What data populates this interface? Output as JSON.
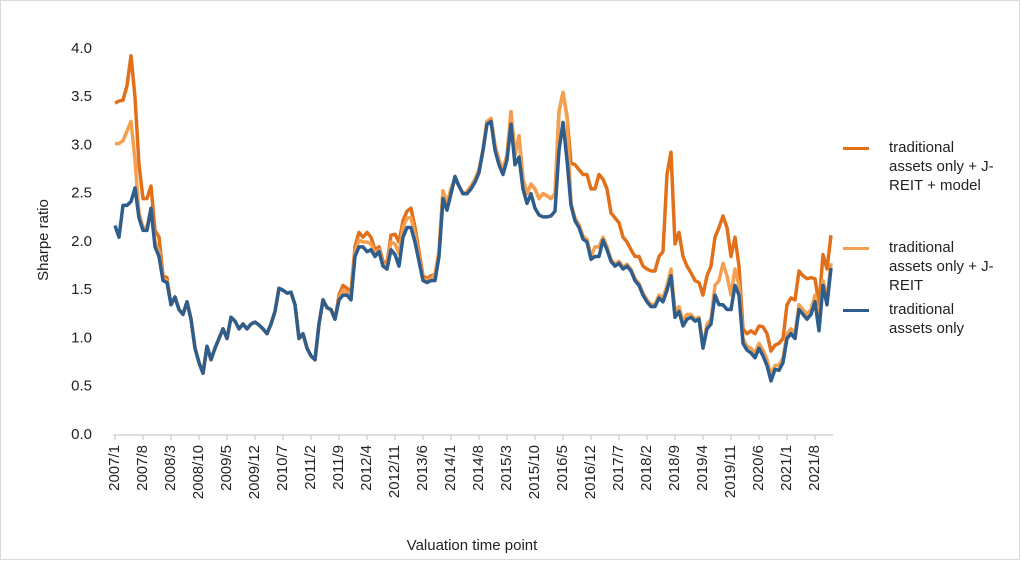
{
  "chart_data": {
    "type": "line",
    "x_label": "Valuation time point",
    "y_label": "Sharpe ratio",
    "ylim": [
      0,
      4
    ],
    "yticks": [
      {
        "value": 0,
        "label": "0.0"
      },
      {
        "value": 0.5,
        "label": "0.5"
      },
      {
        "value": 1,
        "label": "1.0"
      },
      {
        "value": 1.5,
        "label": "1.5"
      },
      {
        "value": 2,
        "label": "2.0"
      },
      {
        "value": 2.5,
        "label": "2.5"
      },
      {
        "value": 3,
        "label": "3.0"
      },
      {
        "value": 3.5,
        "label": "3.5"
      },
      {
        "value": 4,
        "label": "4.0"
      }
    ],
    "grid": false,
    "legend": "right",
    "categories": [
      "2007/1",
      null,
      null,
      null,
      null,
      null,
      null,
      "2007/8",
      null,
      null,
      null,
      null,
      null,
      null,
      "2008/3",
      null,
      null,
      null,
      null,
      null,
      null,
      "2008/10",
      null,
      null,
      null,
      null,
      null,
      null,
      "2009/5",
      null,
      null,
      null,
      null,
      null,
      null,
      "2009/12",
      null,
      null,
      null,
      null,
      null,
      null,
      "2010/7",
      null,
      null,
      null,
      null,
      null,
      null,
      "2011/2",
      null,
      null,
      null,
      null,
      null,
      null,
      "2011/9",
      null,
      null,
      null,
      null,
      null,
      null,
      "2012/4",
      null,
      null,
      null,
      null,
      null,
      null,
      "2012/11",
      null,
      null,
      null,
      null,
      null,
      null,
      "2013/6",
      null,
      null,
      null,
      null,
      null,
      null,
      "2014/1",
      null,
      null,
      null,
      null,
      null,
      null,
      "2014/8",
      null,
      null,
      null,
      null,
      null,
      null,
      "2015/3",
      null,
      null,
      null,
      null,
      null,
      null,
      "2015/10",
      null,
      null,
      null,
      null,
      null,
      null,
      "2016/5",
      null,
      null,
      null,
      null,
      null,
      null,
      "2016/12",
      null,
      null,
      null,
      null,
      null,
      null,
      "2017/7",
      null,
      null,
      null,
      null,
      null,
      null,
      "2018/2",
      null,
      null,
      null,
      null,
      null,
      null,
      "2018/9",
      null,
      null,
      null,
      null,
      null,
      null,
      "2019/4",
      null,
      null,
      null,
      null,
      null,
      null,
      "2019/11",
      null,
      null,
      null,
      null,
      null,
      null,
      "2020/6",
      null,
      null,
      null,
      null,
      null,
      null,
      "2021/1",
      null,
      null,
      null,
      null,
      null,
      null,
      "2021/8",
      null,
      null,
      null,
      null
    ],
    "series": [
      {
        "name": "traditional assets only + J-REIT + model",
        "color": "#e2701a",
        "values": [
          3.44,
          3.46,
          3.47,
          3.62,
          3.93,
          3.5,
          2.8,
          2.45,
          2.45,
          2.58,
          2.12,
          2.05,
          1.65,
          1.63,
          1.35,
          1.43,
          1.3,
          1.25,
          1.38,
          1.2,
          0.9,
          0.75,
          0.64,
          0.92,
          0.78,
          0.9,
          1.0,
          1.1,
          1.0,
          1.22,
          1.18,
          1.1,
          1.15,
          1.1,
          1.15,
          1.17,
          1.14,
          1.1,
          1.05,
          1.15,
          1.28,
          1.52,
          1.5,
          1.47,
          1.48,
          1.35,
          1.0,
          1.05,
          0.9,
          0.82,
          0.78,
          1.15,
          1.4,
          1.32,
          1.3,
          1.2,
          1.45,
          1.55,
          1.52,
          1.48,
          1.95,
          2.1,
          2.05,
          2.1,
          2.05,
          1.92,
          1.95,
          1.8,
          1.78,
          2.07,
          2.08,
          2.0,
          2.22,
          2.32,
          2.35,
          2.15,
          1.9,
          1.65,
          1.62,
          1.65,
          1.66,
          1.9,
          2.53,
          2.4,
          2.55,
          2.65,
          2.58,
          2.5,
          2.52,
          2.58,
          2.65,
          2.75,
          2.95,
          3.25,
          3.28,
          3.0,
          2.85,
          2.75,
          2.9,
          3.35,
          2.9,
          3.1,
          2.65,
          2.5,
          2.6,
          2.55,
          2.45,
          2.5,
          2.48,
          2.45,
          2.5,
          3.35,
          3.55,
          3.3,
          2.82,
          2.8,
          2.75,
          2.7,
          2.7,
          2.55,
          2.55,
          2.7,
          2.65,
          2.55,
          2.3,
          2.25,
          2.2,
          2.05,
          2.0,
          1.92,
          1.85,
          1.85,
          1.75,
          1.72,
          1.7,
          1.7,
          1.85,
          1.9,
          2.7,
          2.93,
          1.98,
          2.1,
          1.85,
          1.75,
          1.68,
          1.6,
          1.58,
          1.45,
          1.65,
          1.75,
          2.05,
          2.15,
          2.27,
          2.15,
          1.85,
          2.05,
          1.75,
          1.1,
          1.05,
          1.08,
          1.05,
          1.13,
          1.12,
          1.05,
          0.87,
          0.93,
          0.95,
          1.0,
          1.35,
          1.42,
          1.4,
          1.7,
          1.65,
          1.62,
          1.63,
          1.62,
          1.35,
          1.87,
          1.72,
          2.07
        ]
      },
      {
        "name": "traditional assets only + J-REIT",
        "color": "#f5a04e",
        "values": [
          3.02,
          3.02,
          3.05,
          3.15,
          3.25,
          2.85,
          2.3,
          2.15,
          2.15,
          2.35,
          2.0,
          1.9,
          1.62,
          1.6,
          1.35,
          1.43,
          1.3,
          1.25,
          1.38,
          1.2,
          0.9,
          0.75,
          0.64,
          0.92,
          0.78,
          0.9,
          1.0,
          1.1,
          1.0,
          1.22,
          1.18,
          1.1,
          1.15,
          1.1,
          1.15,
          1.17,
          1.14,
          1.1,
          1.05,
          1.15,
          1.28,
          1.52,
          1.5,
          1.47,
          1.48,
          1.35,
          1.0,
          1.05,
          0.9,
          0.82,
          0.78,
          1.15,
          1.4,
          1.32,
          1.3,
          1.2,
          1.42,
          1.5,
          1.48,
          1.44,
          1.9,
          2.02,
          2.0,
          2.0,
          1.98,
          1.88,
          1.92,
          1.78,
          1.75,
          2.0,
          1.98,
          1.88,
          2.15,
          2.25,
          2.25,
          2.08,
          1.85,
          1.62,
          1.6,
          1.62,
          1.66,
          1.9,
          2.53,
          2.4,
          2.55,
          2.65,
          2.58,
          2.5,
          2.52,
          2.58,
          2.65,
          2.75,
          2.95,
          3.25,
          3.28,
          3.0,
          2.85,
          2.75,
          2.9,
          3.35,
          2.9,
          3.1,
          2.65,
          2.5,
          2.6,
          2.55,
          2.45,
          2.5,
          2.48,
          2.45,
          2.5,
          3.35,
          3.55,
          3.3,
          2.4,
          2.25,
          2.18,
          2.06,
          2.03,
          1.85,
          1.95,
          1.95,
          2.05,
          1.95,
          1.82,
          1.77,
          1.8,
          1.74,
          1.77,
          1.72,
          1.62,
          1.57,
          1.47,
          1.4,
          1.35,
          1.35,
          1.45,
          1.42,
          1.55,
          1.72,
          1.28,
          1.33,
          1.18,
          1.25,
          1.25,
          1.2,
          1.22,
          0.92,
          1.15,
          1.2,
          1.55,
          1.6,
          1.78,
          1.65,
          1.45,
          1.72,
          1.55,
          1.0,
          0.92,
          0.9,
          0.85,
          0.95,
          0.88,
          0.78,
          0.62,
          0.72,
          0.72,
          0.8,
          1.05,
          1.1,
          1.05,
          1.35,
          1.3,
          1.25,
          1.3,
          1.45,
          1.15,
          1.6,
          1.42,
          1.78
        ]
      },
      {
        "name": "traditional assets only",
        "color": "#2f5d8c",
        "values": [
          2.17,
          2.05,
          2.38,
          2.38,
          2.42,
          2.56,
          2.25,
          2.12,
          2.12,
          2.35,
          1.95,
          1.85,
          1.6,
          1.58,
          1.35,
          1.43,
          1.3,
          1.25,
          1.38,
          1.2,
          0.9,
          0.75,
          0.64,
          0.92,
          0.78,
          0.9,
          1.0,
          1.1,
          1.0,
          1.22,
          1.18,
          1.1,
          1.15,
          1.1,
          1.15,
          1.17,
          1.14,
          1.1,
          1.05,
          1.15,
          1.28,
          1.52,
          1.5,
          1.47,
          1.48,
          1.35,
          1.0,
          1.05,
          0.9,
          0.82,
          0.78,
          1.15,
          1.4,
          1.32,
          1.3,
          1.2,
          1.4,
          1.45,
          1.45,
          1.4,
          1.85,
          1.95,
          1.95,
          1.9,
          1.92,
          1.85,
          1.9,
          1.75,
          1.72,
          1.92,
          1.87,
          1.75,
          2.05,
          2.15,
          2.15,
          2.0,
          1.8,
          1.6,
          1.58,
          1.6,
          1.6,
          1.85,
          2.45,
          2.33,
          2.5,
          2.68,
          2.58,
          2.5,
          2.5,
          2.55,
          2.62,
          2.72,
          2.95,
          3.22,
          3.25,
          2.95,
          2.8,
          2.7,
          2.85,
          3.22,
          2.8,
          2.88,
          2.55,
          2.4,
          2.5,
          2.35,
          2.28,
          2.26,
          2.26,
          2.27,
          2.32,
          2.95,
          3.24,
          2.85,
          2.38,
          2.22,
          2.15,
          2.03,
          2.0,
          1.82,
          1.85,
          1.85,
          2.02,
          1.92,
          1.8,
          1.75,
          1.78,
          1.72,
          1.75,
          1.7,
          1.6,
          1.55,
          1.45,
          1.38,
          1.33,
          1.33,
          1.42,
          1.38,
          1.5,
          1.65,
          1.22,
          1.28,
          1.13,
          1.2,
          1.22,
          1.18,
          1.2,
          0.9,
          1.1,
          1.15,
          1.45,
          1.35,
          1.35,
          1.3,
          1.3,
          1.55,
          1.45,
          0.95,
          0.88,
          0.85,
          0.8,
          0.9,
          0.82,
          0.72,
          0.56,
          0.68,
          0.67,
          0.75,
          1.0,
          1.05,
          1.0,
          1.3,
          1.25,
          1.2,
          1.25,
          1.38,
          1.08,
          1.55,
          1.35,
          1.73
        ]
      }
    ]
  }
}
